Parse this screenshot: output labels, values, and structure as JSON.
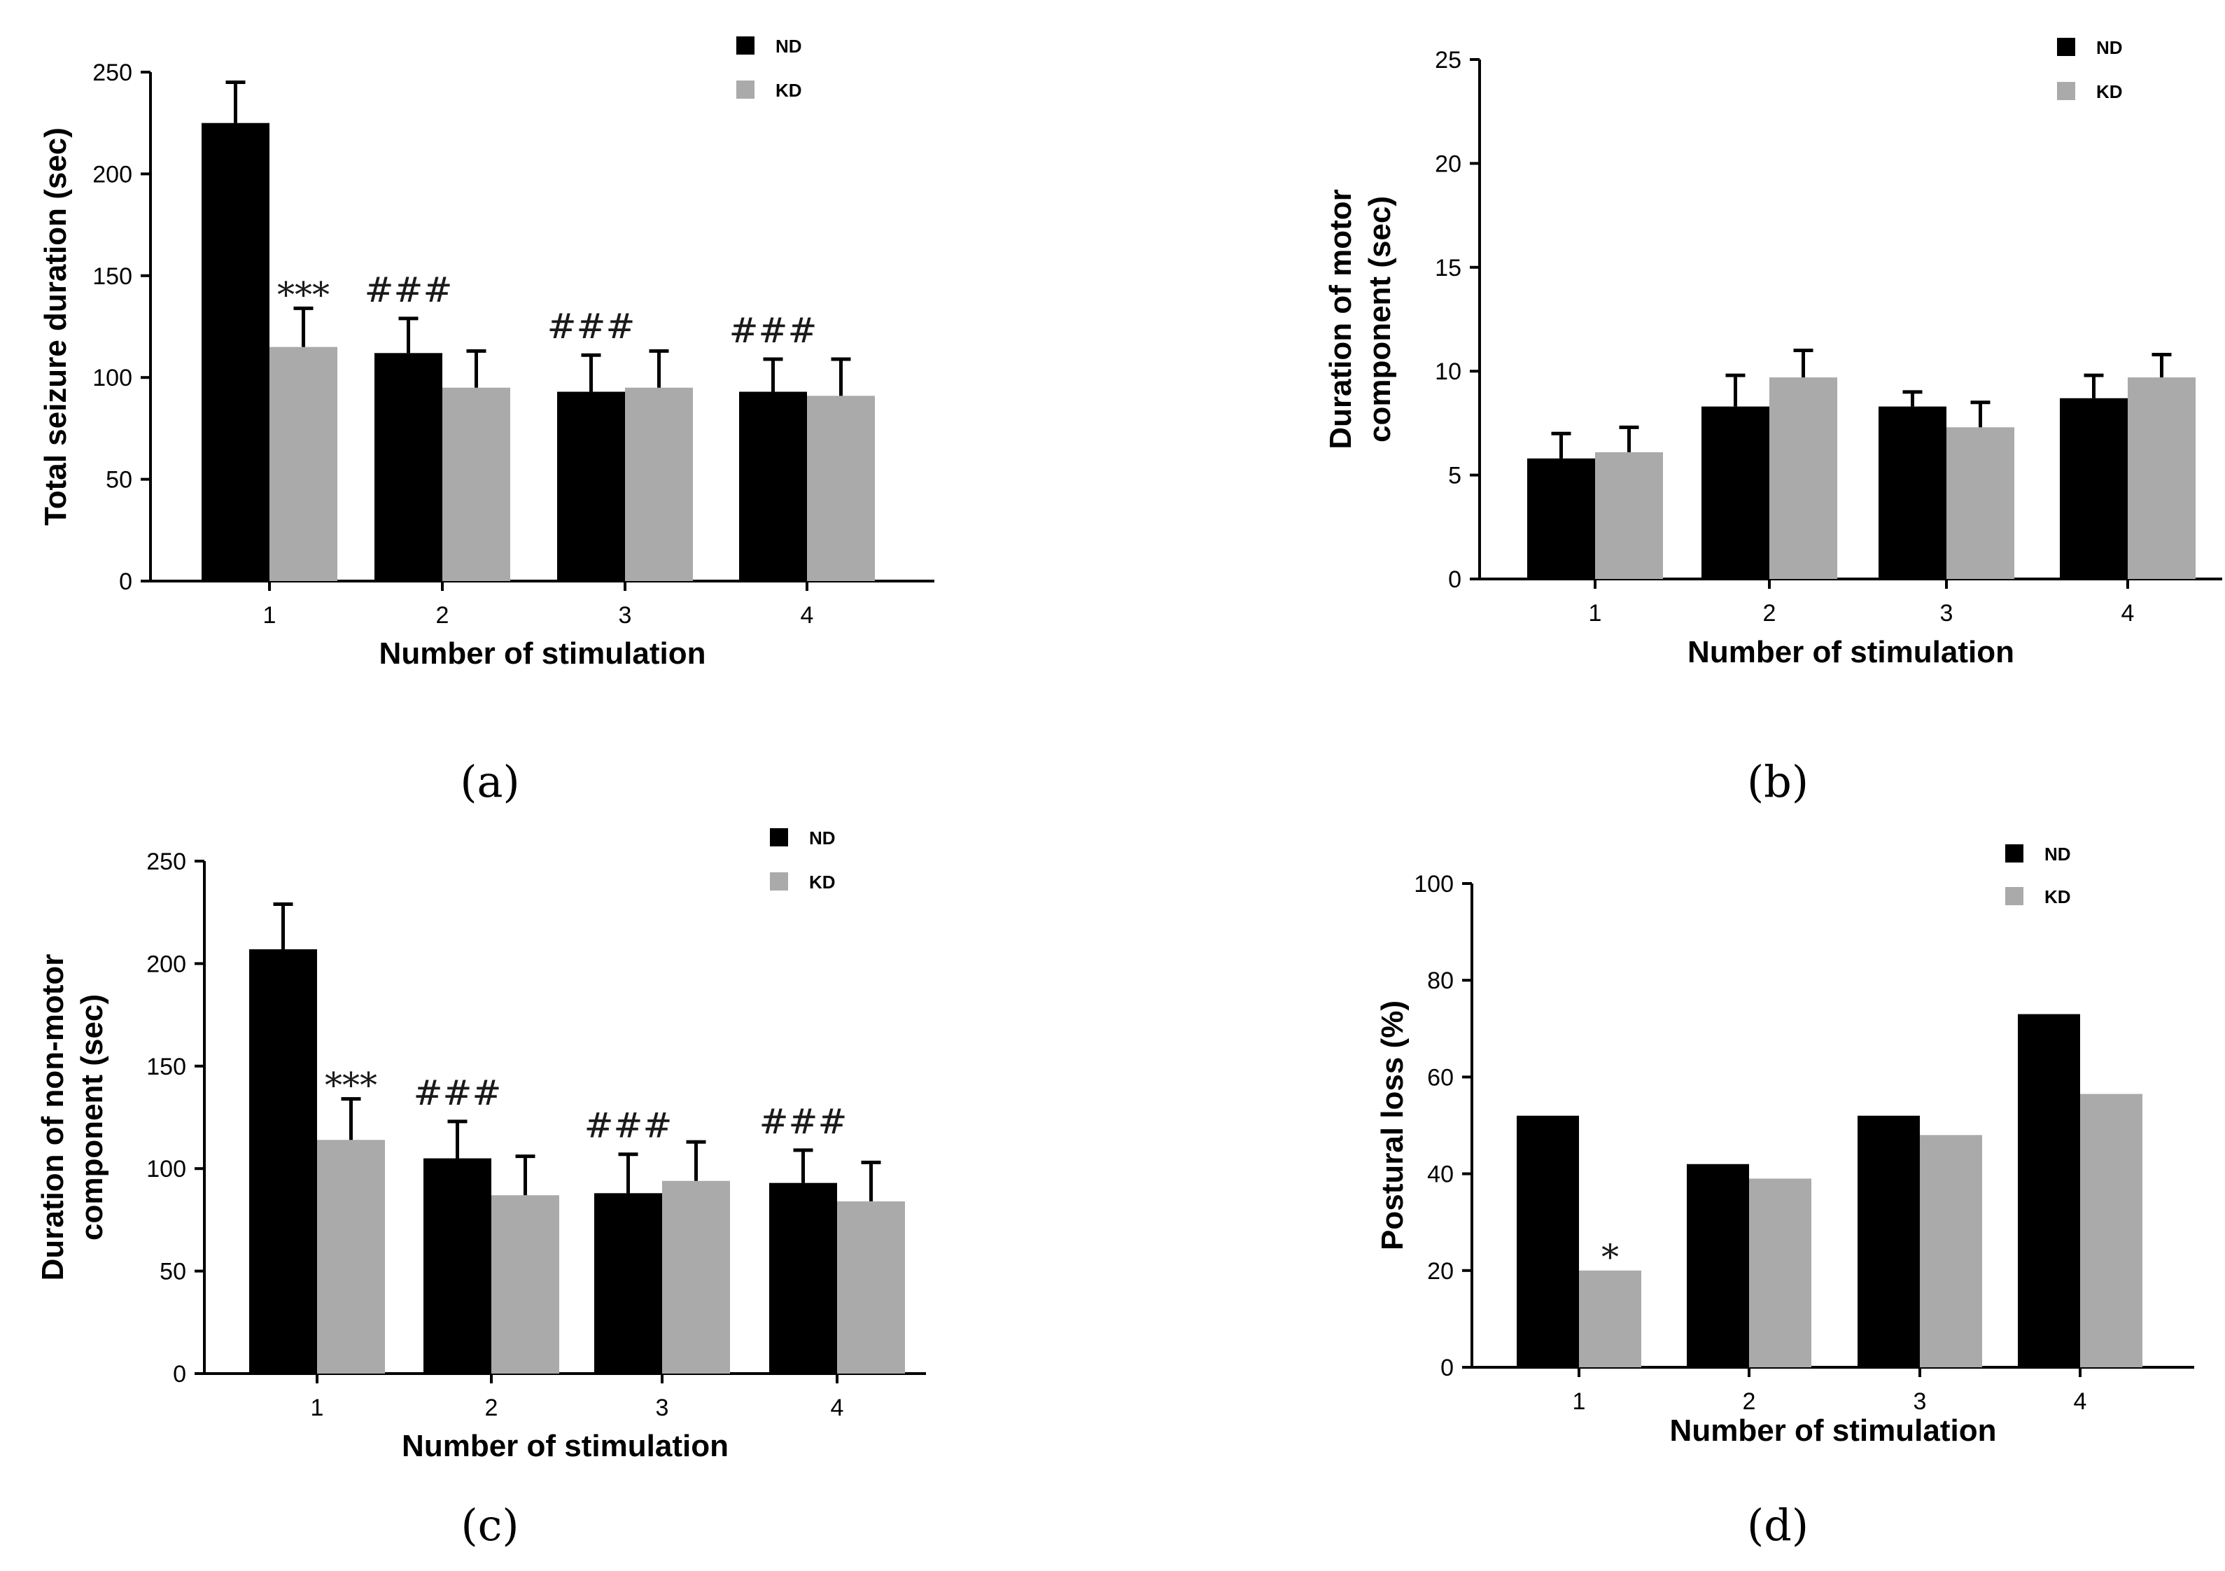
{
  "chart_data": [
    {
      "type": "bar",
      "panel": "(a)",
      "categories": [
        "1",
        "2",
        "3",
        "4"
      ],
      "series": [
        {
          "name": "ND",
          "color": "#000000",
          "values": [
            225,
            112,
            93,
            93
          ],
          "errors": [
            20,
            17,
            18,
            16
          ]
        },
        {
          "name": "KD",
          "color": "#aaaaaa",
          "values": [
            115,
            95,
            95,
            91
          ],
          "errors": [
            19,
            18,
            18,
            18
          ]
        }
      ],
      "annotations": [
        {
          "text": "***",
          "category": "1",
          "series": "KD"
        },
        {
          "text": "###",
          "category": "2",
          "series": "ND"
        },
        {
          "text": "###",
          "category": "3",
          "series": "ND"
        },
        {
          "text": "###",
          "category": "4",
          "series": "ND"
        }
      ],
      "yticks": [
        0,
        50,
        100,
        150,
        200,
        250
      ],
      "ylim": [
        0,
        250
      ],
      "xlabel": "Number of stimulation",
      "ylabel": "Total seizure duration (sec)"
    },
    {
      "type": "bar",
      "panel": "(b)",
      "categories": [
        "1",
        "2",
        "3",
        "4"
      ],
      "series": [
        {
          "name": "ND",
          "color": "#000000",
          "values": [
            5.8,
            8.3,
            8.3,
            8.7
          ],
          "errors": [
            1.2,
            1.5,
            0.7,
            1.1
          ]
        },
        {
          "name": "KD",
          "color": "#aaaaaa",
          "values": [
            6.1,
            9.7,
            7.3,
            9.7
          ],
          "errors": [
            1.2,
            1.3,
            1.2,
            1.1
          ]
        }
      ],
      "annotations": [],
      "yticks": [
        0,
        5,
        10,
        15,
        20,
        25
      ],
      "ylim": [
        0,
        25
      ],
      "xlabel": "Number of stimulation",
      "ylabel": "Duration of motor component (sec)",
      "ylabel_lines": [
        "Duration of motor",
        "component (sec)"
      ]
    },
    {
      "type": "bar",
      "panel": "(c)",
      "categories": [
        "1",
        "2",
        "3",
        "4"
      ],
      "series": [
        {
          "name": "ND",
          "color": "#000000",
          "values": [
            207,
            105,
            88,
            93
          ],
          "errors": [
            22,
            18,
            19,
            16
          ]
        },
        {
          "name": "KD",
          "color": "#aaaaaa",
          "values": [
            114,
            87,
            94,
            84
          ],
          "errors": [
            20,
            19,
            19,
            19
          ]
        }
      ],
      "annotations": [
        {
          "text": "***",
          "category": "1",
          "series": "KD"
        },
        {
          "text": "###",
          "category": "2",
          "series": "ND"
        },
        {
          "text": "###",
          "category": "3",
          "series": "ND"
        },
        {
          "text": "###",
          "category": "4",
          "series": "ND"
        }
      ],
      "yticks": [
        0,
        50,
        100,
        150,
        200,
        250
      ],
      "ylim": [
        0,
        250
      ],
      "xlabel": "Number of stimulation",
      "ylabel": "Duration of non-motor component (sec)",
      "ylabel_lines": [
        "Duration of non-motor",
        "component (sec)"
      ]
    },
    {
      "type": "bar",
      "panel": "(d)",
      "categories": [
        "1",
        "2",
        "3",
        "4"
      ],
      "series": [
        {
          "name": "ND",
          "color": "#000000",
          "values": [
            52,
            42,
            52,
            73
          ]
        },
        {
          "name": "KD",
          "color": "#aaaaaa",
          "values": [
            20,
            39,
            48,
            56.5
          ]
        }
      ],
      "annotations": [
        {
          "text": "*",
          "category": "1",
          "series": "KD"
        }
      ],
      "yticks": [
        0,
        20,
        40,
        60,
        80,
        100
      ],
      "ylim": [
        0,
        100
      ],
      "xlabel": "Number of stimulation",
      "ylabel": "Postural loss (%)"
    }
  ]
}
